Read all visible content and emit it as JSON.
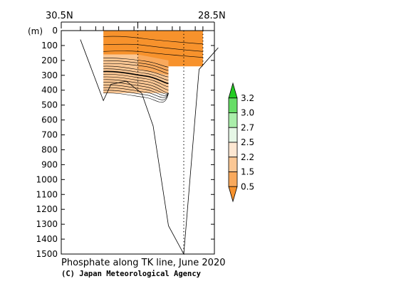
{
  "chart_data": {
    "type": "section-contour",
    "title": "Phosphate along TK line, June 2020",
    "credit": "(C) Japan Meteorological Agency",
    "y_unit_label": "(m)",
    "x_ticklabels": [
      "30.5N",
      "28.5N"
    ],
    "x_range": [
      30.5,
      28.5
    ],
    "y_range": [
      0,
      1500
    ],
    "y_ticks": [
      0,
      100,
      200,
      300,
      400,
      500,
      600,
      700,
      800,
      900,
      1000,
      1100,
      1200,
      1300,
      1400,
      1500
    ],
    "colorbar": {
      "labels": [
        "3.2",
        "3.0",
        "2.7",
        "2.5",
        "2.2",
        "1.5",
        "0.5"
      ],
      "bins": [
        {
          "color": "#22cc22"
        },
        {
          "color": "#66dd66"
        },
        {
          "color": "#aaeeaa"
        },
        {
          "color": "#e6f7e6"
        },
        {
          "color": "#fde7d2"
        },
        {
          "color": "#fbc794"
        },
        {
          "color": "#f9a95c"
        },
        {
          "color": "#f7922c"
        }
      ]
    },
    "bottom_profile": [
      {
        "lat": 30.25,
        "depth": 60
      },
      {
        "lat": 29.95,
        "depth": 470
      },
      {
        "lat": 29.85,
        "depth": 360
      },
      {
        "lat": 29.65,
        "depth": 340
      },
      {
        "lat": 29.45,
        "depth": 420
      },
      {
        "lat": 29.3,
        "depth": 640
      },
      {
        "lat": 29.1,
        "depth": 1310
      },
      {
        "lat": 28.9,
        "depth": 1500
      },
      {
        "lat": 28.7,
        "depth": 260
      },
      {
        "lat": 28.45,
        "depth": 115
      }
    ],
    "station_lats": [
      29.5,
      28.9,
      28.65
    ],
    "station_bottom_depths": [
      420,
      1500,
      240
    ],
    "filled_regions": [
      {
        "color": "#f7922c",
        "lat_from": 29.95,
        "lat_to": 28.65,
        "depth_from": 0,
        "depth_to": 240
      },
      {
        "color": "#fbc794",
        "lat_from": 29.95,
        "lat_to": 29.1,
        "depth_from": 160,
        "depth_to": 420
      }
    ]
  }
}
